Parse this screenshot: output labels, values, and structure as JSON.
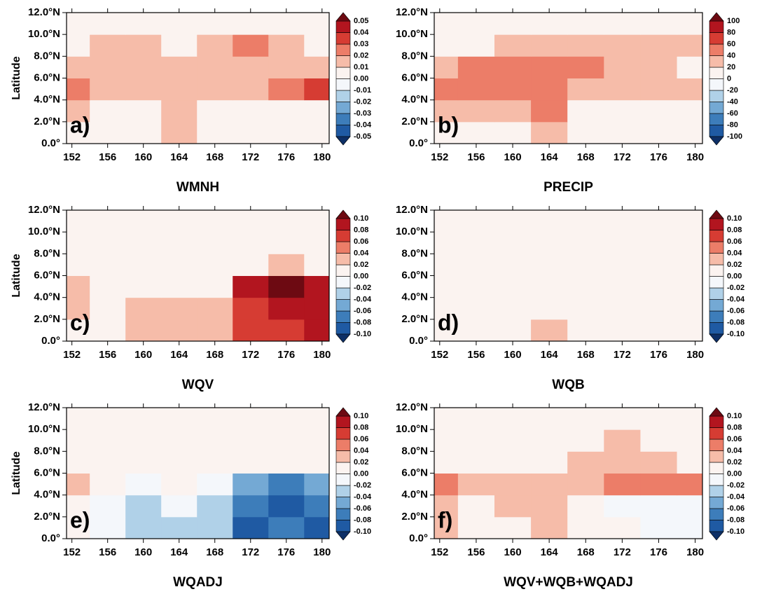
{
  "chart_data": [
    {
      "type": "heatmap",
      "title": "WMNH",
      "panel_label": "a)",
      "ylabel": "Latitude",
      "x": [
        152,
        156,
        160,
        164,
        168,
        172,
        176,
        180
      ],
      "y": [
        1,
        3,
        5,
        7,
        9,
        11
      ],
      "z": [
        [
          0,
          0,
          0.005,
          0.01,
          0,
          0,
          0,
          0
        ],
        [
          0.01,
          0,
          0.005,
          0.01,
          0,
          0,
          0,
          0
        ],
        [
          0.02,
          0.01,
          0.01,
          0.015,
          0.01,
          0.015,
          0.025,
          0.03
        ],
        [
          0.015,
          0.015,
          0.015,
          0.01,
          0.015,
          0.015,
          0.01,
          0.01
        ],
        [
          0.005,
          0.01,
          0.01,
          0.005,
          0.015,
          0.02,
          0.01,
          0.005
        ],
        [
          0,
          0,
          0,
          0,
          0,
          0.005,
          0,
          0
        ]
      ],
      "xlim": [
        151.4,
        180.8
      ],
      "ylim": [
        0,
        12
      ],
      "xticks": [
        152,
        156,
        160,
        164,
        168,
        172,
        176,
        180
      ],
      "yticks": [
        {
          "value": 0,
          "label": "0.0°"
        },
        {
          "value": 2,
          "label": "2.0°N"
        },
        {
          "value": 4,
          "label": "4.0°N"
        },
        {
          "value": 6,
          "label": "6.0°N"
        },
        {
          "value": 8,
          "label": "8.0°N"
        },
        {
          "value": 10,
          "label": "10.0°N"
        },
        {
          "value": 12,
          "label": "12.0°N"
        }
      ],
      "cticks": [
        -0.05,
        -0.04,
        -0.03,
        -0.02,
        -0.01,
        {
          "value": 0,
          "label": "0.00"
        },
        0.01,
        0.02,
        0.03,
        0.04,
        0.05
      ],
      "colors": [
        "#0d2f66",
        "#1f5aa3",
        "#3d7dba",
        "#74a9d4",
        "#b0d1e8",
        "#f4f7fb",
        "#fbf3f0",
        "#f6bca9",
        "#ec7d68",
        "#d63c33",
        "#b2151f",
        "#6d0a12"
      ]
    },
    {
      "type": "heatmap",
      "title": "PRECIP",
      "panel_label": "b)",
      "x": [
        152,
        156,
        160,
        164,
        168,
        172,
        176,
        180
      ],
      "y": [
        1,
        3,
        5,
        7,
        9,
        11
      ],
      "z": [
        [
          0,
          5,
          10,
          30,
          0,
          0,
          0,
          0
        ],
        [
          30,
          30,
          30,
          40,
          10,
          10,
          5,
          0
        ],
        [
          40,
          50,
          40,
          40,
          30,
          30,
          20,
          30
        ],
        [
          30,
          50,
          50,
          40,
          40,
          30,
          20,
          10
        ],
        [
          0,
          10,
          20,
          20,
          30,
          30,
          30,
          20
        ],
        [
          0,
          0,
          0,
          0,
          0,
          0,
          10,
          10
        ]
      ],
      "xlim": [
        151.4,
        180.8
      ],
      "ylim": [
        0,
        12
      ],
      "xticks": [
        152,
        156,
        160,
        164,
        168,
        172,
        176,
        180
      ],
      "yticks": [
        {
          "value": 0,
          "label": "0.0°"
        },
        {
          "value": 2,
          "label": "2.0°N"
        },
        {
          "value": 4,
          "label": "4.0°N"
        },
        {
          "value": 6,
          "label": "6.0°N"
        },
        {
          "value": 8,
          "label": "8.0°N"
        },
        {
          "value": 10,
          "label": "10.0°N"
        },
        {
          "value": 12,
          "label": "12.0°N"
        }
      ],
      "cticks": [
        -100,
        -80,
        -60,
        -40,
        -20,
        0,
        20,
        40,
        60,
        80,
        100
      ],
      "colors": [
        "#0d2f66",
        "#1f5aa3",
        "#3d7dba",
        "#74a9d4",
        "#b0d1e8",
        "#f4f7fb",
        "#fbf3f0",
        "#f6bca9",
        "#ec7d68",
        "#d63c33",
        "#b2151f",
        "#6d0a12"
      ]
    },
    {
      "type": "heatmap",
      "title": "WQV",
      "panel_label": "c)",
      "ylabel": "Latitude",
      "x": [
        152,
        156,
        160,
        164,
        168,
        172,
        176,
        180
      ],
      "y": [
        1,
        3,
        5,
        7,
        9,
        11
      ],
      "z": [
        [
          0,
          0.01,
          0.03,
          0.03,
          0.02,
          0.06,
          0.07,
          0.08
        ],
        [
          0.02,
          0,
          0.02,
          0.03,
          0.03,
          0.06,
          0.08,
          0.09
        ],
        [
          0.02,
          0,
          0,
          0,
          0.01,
          0.08,
          0.1,
          0.09
        ],
        [
          0,
          0,
          0,
          0,
          0,
          0.01,
          0.02,
          0.01
        ],
        [
          0,
          0.005,
          0,
          0,
          0,
          0.01,
          0.005,
          0
        ],
        [
          0,
          0,
          0,
          0,
          0,
          0,
          0,
          0
        ]
      ],
      "xlim": [
        151.4,
        180.8
      ],
      "ylim": [
        0,
        12
      ],
      "xticks": [
        152,
        156,
        160,
        164,
        168,
        172,
        176,
        180
      ],
      "yticks": [
        {
          "value": 0,
          "label": "0.0°"
        },
        {
          "value": 2,
          "label": "2.0°N"
        },
        {
          "value": 4,
          "label": "4.0°N"
        },
        {
          "value": 6,
          "label": "6.0°N"
        },
        {
          "value": 8,
          "label": "8.0°N"
        },
        {
          "value": 10,
          "label": "10.0°N"
        },
        {
          "value": 12,
          "label": "12.0°N"
        }
      ],
      "cticks": [
        {
          "value": -0.1,
          "label": "-0.10"
        },
        -0.08,
        -0.06,
        -0.04,
        -0.02,
        {
          "value": 0,
          "label": "0.00"
        },
        0.02,
        0.04,
        0.06,
        0.08,
        {
          "value": 0.1,
          "label": "0.10"
        }
      ],
      "colors": [
        "#0d2f66",
        "#1f5aa3",
        "#3d7dba",
        "#74a9d4",
        "#b0d1e8",
        "#f4f7fb",
        "#fbf3f0",
        "#f6bca9",
        "#ec7d68",
        "#d63c33",
        "#b2151f",
        "#6d0a12"
      ]
    },
    {
      "type": "heatmap",
      "title": "WQB",
      "panel_label": "d)",
      "x": [
        152,
        156,
        160,
        164,
        168,
        172,
        176,
        180
      ],
      "y": [
        1,
        3,
        5,
        7,
        9,
        11
      ],
      "z": [
        [
          0.005,
          0.01,
          0.01,
          0.02,
          0.01,
          0.015,
          0.015,
          0.01
        ],
        [
          0.005,
          0.01,
          0.015,
          0.015,
          0.01,
          0.015,
          0.015,
          0.015
        ],
        [
          0,
          0.005,
          0.01,
          0.01,
          0.01,
          0.01,
          0.01,
          0.015
        ],
        [
          0,
          0,
          0.005,
          0.005,
          0.005,
          0.005,
          0.005,
          0.005
        ],
        [
          0,
          0,
          0,
          0,
          0,
          0,
          0,
          0
        ],
        [
          0,
          0,
          0,
          0,
          0,
          0,
          0,
          0
        ]
      ],
      "xlim": [
        151.4,
        180.8
      ],
      "ylim": [
        0,
        12
      ],
      "xticks": [
        152,
        156,
        160,
        164,
        168,
        172,
        176,
        180
      ],
      "yticks": [
        {
          "value": 0,
          "label": "0.0°"
        },
        {
          "value": 2,
          "label": "2.0°N"
        },
        {
          "value": 4,
          "label": "4.0°N"
        },
        {
          "value": 6,
          "label": "6.0°N"
        },
        {
          "value": 8,
          "label": "8.0°N"
        },
        {
          "value": 10,
          "label": "10.0°N"
        },
        {
          "value": 12,
          "label": "12.0°N"
        }
      ],
      "cticks": [
        {
          "value": -0.1,
          "label": "-0.10"
        },
        -0.08,
        -0.06,
        -0.04,
        -0.02,
        {
          "value": 0,
          "label": "0.00"
        },
        0.02,
        0.04,
        0.06,
        0.08,
        {
          "value": 0.1,
          "label": "0.10"
        }
      ],
      "colors": [
        "#0d2f66",
        "#1f5aa3",
        "#3d7dba",
        "#74a9d4",
        "#b0d1e8",
        "#f4f7fb",
        "#fbf3f0",
        "#f6bca9",
        "#ec7d68",
        "#d63c33",
        "#b2151f",
        "#6d0a12"
      ]
    },
    {
      "type": "heatmap",
      "title": "WQADJ",
      "panel_label": "e)",
      "ylabel": "Latitude",
      "x": [
        152,
        156,
        160,
        164,
        168,
        172,
        176,
        180
      ],
      "y": [
        1,
        3,
        5,
        7,
        9,
        11
      ],
      "z": [
        [
          0,
          -0.02,
          -0.03,
          -0.03,
          -0.03,
          -0.09,
          -0.08,
          -0.09
        ],
        [
          0.01,
          -0.01,
          -0.03,
          -0.02,
          -0.04,
          -0.08,
          -0.09,
          -0.08
        ],
        [
          0.02,
          0,
          -0.01,
          0,
          -0.02,
          -0.06,
          -0.07,
          -0.05
        ],
        [
          0.01,
          0,
          0.01,
          0.01,
          0.01,
          0,
          0.01,
          0.005
        ],
        [
          0,
          0,
          0.005,
          0.005,
          0.01,
          0.015,
          0.01,
          0.005
        ],
        [
          0,
          0,
          0,
          0,
          0,
          0.005,
          0,
          0
        ]
      ],
      "xlim": [
        151.4,
        180.8
      ],
      "ylim": [
        0,
        12
      ],
      "xticks": [
        152,
        156,
        160,
        164,
        168,
        172,
        176,
        180
      ],
      "yticks": [
        {
          "value": 0,
          "label": "0.0°"
        },
        {
          "value": 2,
          "label": "2.0°N"
        },
        {
          "value": 4,
          "label": "4.0°N"
        },
        {
          "value": 6,
          "label": "6.0°N"
        },
        {
          "value": 8,
          "label": "8.0°N"
        },
        {
          "value": 10,
          "label": "10.0°N"
        },
        {
          "value": 12,
          "label": "12.0°N"
        }
      ],
      "cticks": [
        {
          "value": -0.1,
          "label": "-0.10"
        },
        -0.08,
        -0.06,
        -0.04,
        -0.02,
        {
          "value": 0,
          "label": "0.00"
        },
        0.02,
        0.04,
        0.06,
        0.08,
        {
          "value": 0.1,
          "label": "0.10"
        }
      ],
      "colors": [
        "#0d2f66",
        "#1f5aa3",
        "#3d7dba",
        "#74a9d4",
        "#b0d1e8",
        "#f4f7fb",
        "#fbf3f0",
        "#f6bca9",
        "#ec7d68",
        "#d63c33",
        "#b2151f",
        "#6d0a12"
      ]
    },
    {
      "type": "heatmap",
      "title": "WQV+WQB+WQADJ",
      "panel_label": "f)",
      "x": [
        152,
        156,
        160,
        164,
        168,
        172,
        176,
        180
      ],
      "y": [
        1,
        3,
        5,
        7,
        9,
        11
      ],
      "z": [
        [
          0.02,
          0,
          0,
          0.03,
          0,
          0,
          -0.01,
          -0.01
        ],
        [
          0.03,
          0,
          0.02,
          0.02,
          0,
          -0.01,
          -0.02,
          -0.01
        ],
        [
          0.04,
          0.02,
          0.03,
          0.03,
          0.03,
          0.05,
          0.05,
          0.05
        ],
        [
          0.01,
          0,
          0.01,
          0.01,
          0.02,
          0.03,
          0.02,
          0.015
        ],
        [
          0,
          0,
          0.005,
          0,
          0.01,
          0.02,
          0.01,
          0.005
        ],
        [
          0,
          0,
          0,
          0,
          0,
          0,
          0,
          0
        ]
      ],
      "xlim": [
        151.4,
        180.8
      ],
      "ylim": [
        0,
        12
      ],
      "xticks": [
        152,
        156,
        160,
        164,
        168,
        172,
        176,
        180
      ],
      "yticks": [
        {
          "value": 0,
          "label": "0.0°"
        },
        {
          "value": 2,
          "label": "2.0°N"
        },
        {
          "value": 4,
          "label": "4.0°N"
        },
        {
          "value": 6,
          "label": "6.0°N"
        },
        {
          "value": 8,
          "label": "8.0°N"
        },
        {
          "value": 10,
          "label": "10.0°N"
        },
        {
          "value": 12,
          "label": "12.0°N"
        }
      ],
      "cticks": [
        {
          "value": -0.1,
          "label": "-0.10"
        },
        -0.08,
        -0.06,
        -0.04,
        -0.02,
        {
          "value": 0,
          "label": "0.00"
        },
        0.02,
        0.04,
        0.06,
        0.08,
        {
          "value": 0.1,
          "label": "0.10"
        }
      ],
      "colors": [
        "#0d2f66",
        "#1f5aa3",
        "#3d7dba",
        "#74a9d4",
        "#b0d1e8",
        "#f4f7fb",
        "#fbf3f0",
        "#f6bca9",
        "#ec7d68",
        "#d63c33",
        "#b2151f",
        "#6d0a12"
      ]
    }
  ]
}
